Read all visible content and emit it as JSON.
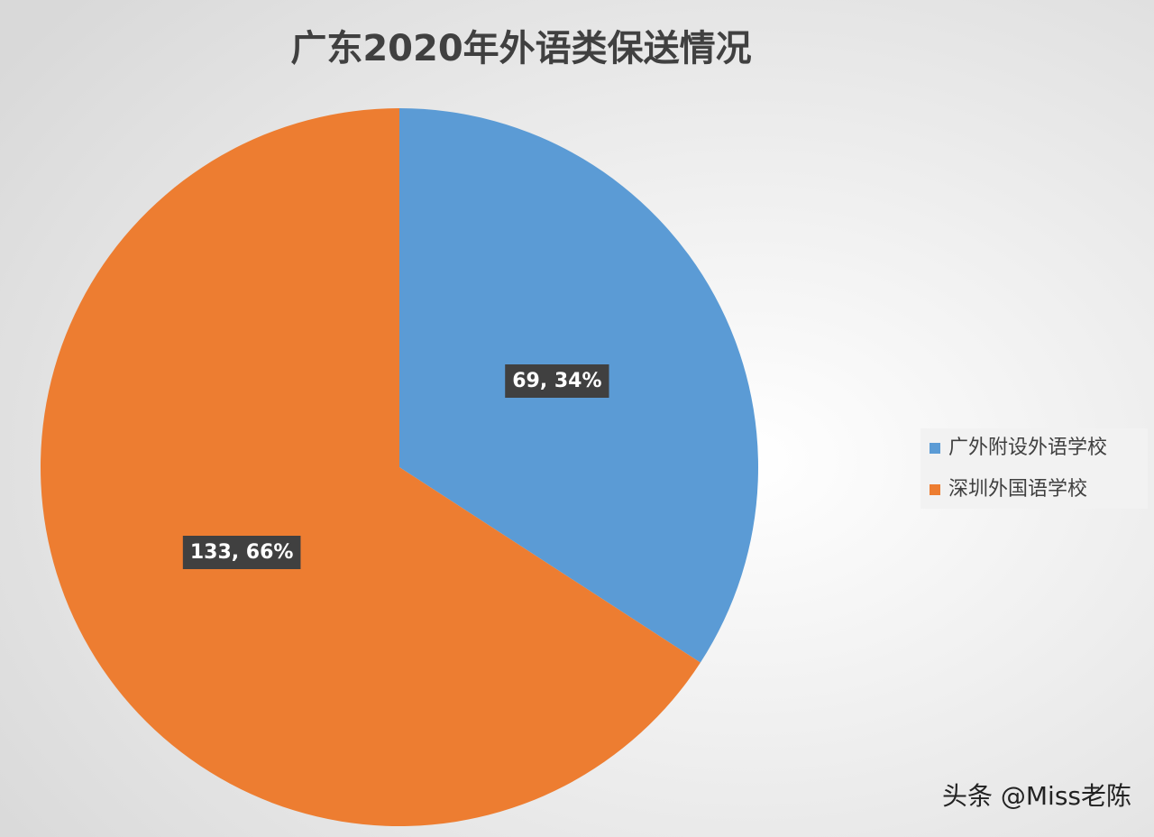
{
  "chart_data": {
    "type": "pie",
    "title": "广东2020年外语类保送情况",
    "categories": [
      "广外附设外语学校",
      "深圳外国语学校"
    ],
    "values": [
      69,
      133
    ],
    "value_labels": [
      "69, 34%",
      "133, 66%"
    ],
    "colors": [
      "#5b9bd5",
      "#ed7d31"
    ],
    "legend": "right"
  },
  "watermark": "头条 @Miss老陈"
}
